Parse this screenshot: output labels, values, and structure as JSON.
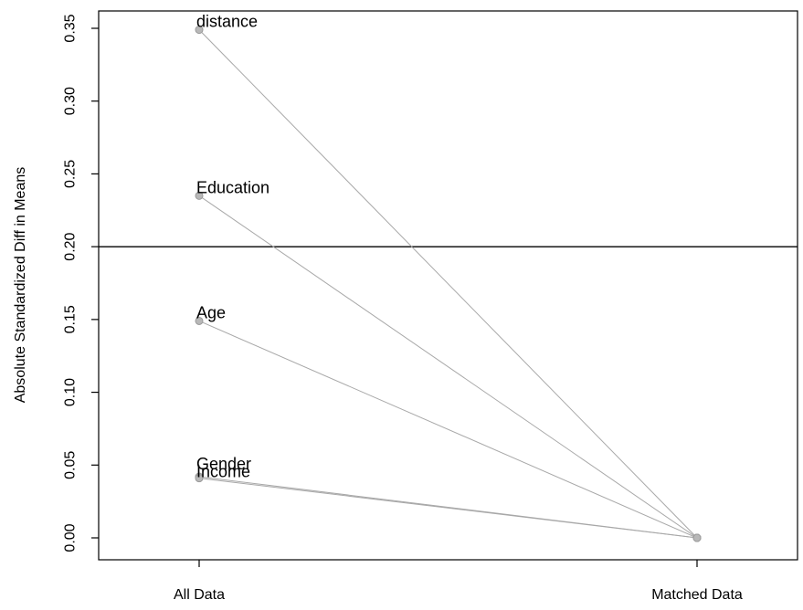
{
  "chart_data": {
    "type": "line",
    "title": "",
    "xlabel": "",
    "ylabel": "Absolute Standardized Diff in Means",
    "categories": [
      "All Data",
      "Matched Data"
    ],
    "ylim": [
      -0.015,
      0.355
    ],
    "yticks": [
      0.0,
      0.05,
      0.1,
      0.15,
      0.2,
      0.25,
      0.3,
      0.35
    ],
    "ytick_labels": [
      "0.00",
      "0.05",
      "0.10",
      "0.15",
      "0.20",
      "0.25",
      "0.30",
      "0.35"
    ],
    "reference_line": 0.2,
    "grid": false,
    "series": [
      {
        "name": "distance",
        "values": [
          0.349,
          0.0
        ]
      },
      {
        "name": "Education",
        "values": [
          0.235,
          0.0
        ]
      },
      {
        "name": "Age",
        "values": [
          0.149,
          0.0
        ]
      },
      {
        "name": "Gender",
        "values": [
          0.042,
          0.0
        ]
      },
      {
        "name": "Income",
        "values": [
          0.041,
          0.0
        ]
      }
    ]
  }
}
